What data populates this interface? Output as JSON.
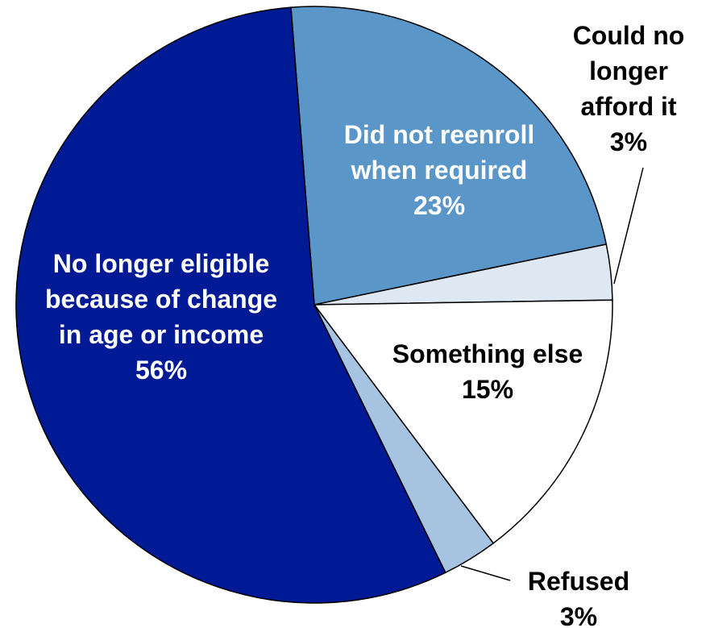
{
  "chart_data": {
    "type": "pie",
    "title": "",
    "slices": [
      {
        "label_lines": [
          "Did not reenroll",
          "when required"
        ],
        "value_label": "23%",
        "value": 23,
        "color": "#5b96c9",
        "text_color": "#ffffff",
        "label_position": "inside"
      },
      {
        "label_lines": [
          "Could no",
          "longer",
          "afford it"
        ],
        "value_label": "3%",
        "value": 3,
        "color": "#dde8f3",
        "text_color": "#000000",
        "label_position": "outside"
      },
      {
        "label_lines": [
          "Something else"
        ],
        "value_label": "15%",
        "value": 15,
        "color": "#ffffff",
        "text_color": "#000000",
        "label_position": "inside"
      },
      {
        "label_lines": [
          "Refused"
        ],
        "value_label": "3%",
        "value": 3,
        "color": "#a6c3e2",
        "text_color": "#000000",
        "label_position": "outside"
      },
      {
        "label_lines": [
          "No longer eligible",
          "because of change",
          "in age or income"
        ],
        "value_label": "56%",
        "value": 56,
        "color": "#001a96",
        "text_color": "#ffffff",
        "label_position": "inside"
      }
    ]
  }
}
